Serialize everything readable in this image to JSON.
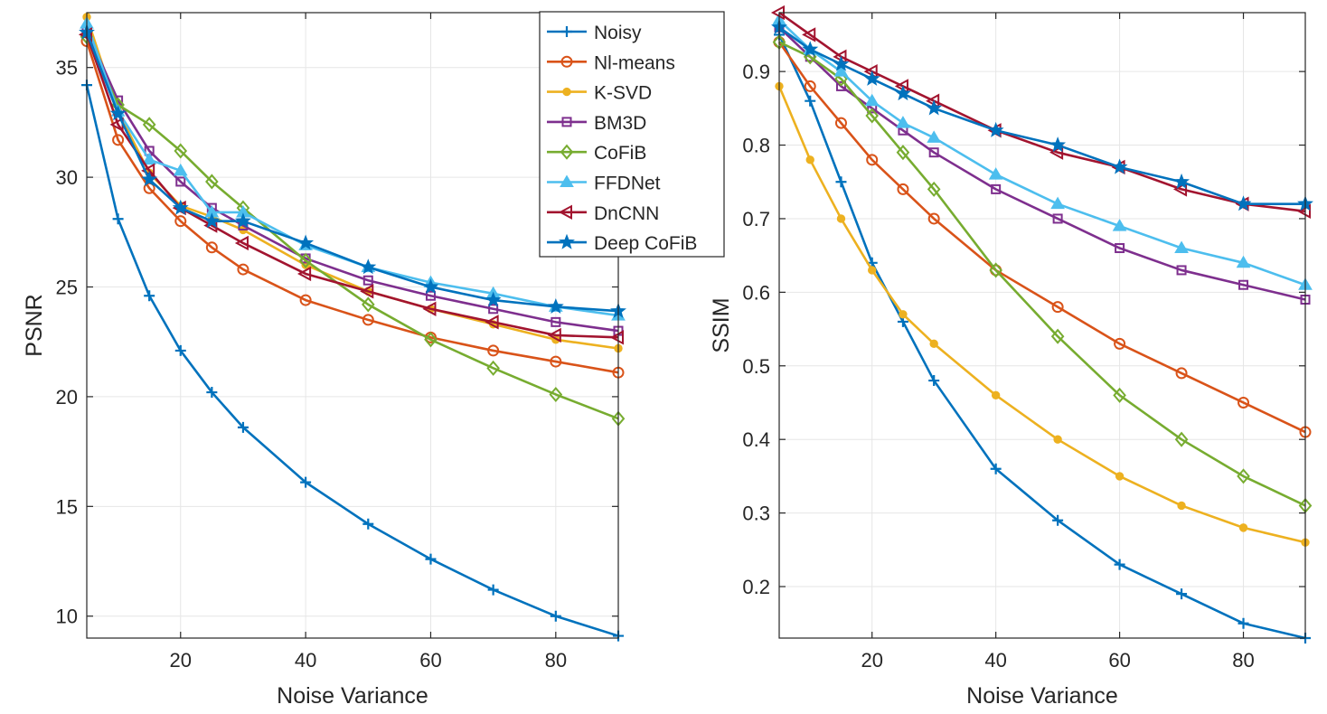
{
  "chart_data": [
    {
      "type": "line",
      "title": "",
      "xlabel": "Noise Variance",
      "ylabel": "PSNR",
      "xlim": [
        5,
        90
      ],
      "ylim": [
        9,
        37.5
      ],
      "xticks": [
        20,
        40,
        60,
        80
      ],
      "xtick_labels": [
        "20",
        "40",
        "60",
        "80"
      ],
      "yticks": [
        10,
        15,
        20,
        25,
        30,
        35
      ],
      "ytick_labels": [
        "10",
        "15",
        "20",
        "25",
        "30",
        "35"
      ],
      "grid": true,
      "x": [
        5,
        10,
        15,
        20,
        25,
        30,
        40,
        50,
        60,
        70,
        80,
        90
      ],
      "series": [
        {
          "name": "Noisy",
          "color": "#0072BD",
          "marker": "plus",
          "values": [
            34.2,
            28.1,
            24.6,
            22.1,
            20.2,
            18.6,
            16.1,
            14.2,
            12.6,
            11.2,
            10.0,
            9.1
          ]
        },
        {
          "name": "Nl-means",
          "color": "#D95319",
          "marker": "circle",
          "values": [
            36.2,
            31.7,
            29.5,
            28.0,
            26.8,
            25.8,
            24.4,
            23.5,
            22.7,
            22.1,
            21.6,
            21.1
          ]
        },
        {
          "name": "K-SVD",
          "color": "#EDB120",
          "marker": "dot",
          "values": [
            37.3,
            33.0,
            30.2,
            28.7,
            28.2,
            27.6,
            26.0,
            24.8,
            24.0,
            23.3,
            22.6,
            22.2
          ]
        },
        {
          "name": "BM3D",
          "color": "#7E2F8E",
          "marker": "square",
          "values": [
            36.7,
            33.5,
            31.2,
            29.8,
            28.6,
            27.8,
            26.3,
            25.3,
            24.6,
            24.0,
            23.4,
            23.0
          ]
        },
        {
          "name": "CoFiB",
          "color": "#77AC30",
          "marker": "diamond",
          "values": [
            36.4,
            33.3,
            32.4,
            31.2,
            29.8,
            28.6,
            26.2,
            24.2,
            22.6,
            21.3,
            20.1,
            19.0
          ]
        },
        {
          "name": "FFDNet",
          "color": "#4DBEEE",
          "marker": "triangle-up",
          "values": [
            37.0,
            33.0,
            30.8,
            30.3,
            28.4,
            28.4,
            26.9,
            25.9,
            25.2,
            24.7,
            24.1,
            23.7
          ]
        },
        {
          "name": "DnCNN",
          "color": "#A2142F",
          "marker": "triangle-left",
          "values": [
            36.5,
            32.4,
            30.3,
            28.6,
            27.8,
            27.0,
            25.6,
            24.8,
            24.0,
            23.4,
            22.8,
            22.7
          ]
        },
        {
          "name": "Deep CoFiB",
          "color": "#0072BD",
          "marker": "pentagram",
          "values": [
            36.6,
            32.9,
            29.9,
            28.6,
            28.0,
            28.0,
            27.0,
            25.9,
            25.0,
            24.4,
            24.1,
            23.9
          ]
        }
      ],
      "legend": {
        "position": "top-right"
      }
    },
    {
      "type": "line",
      "title": "",
      "xlabel": "Noise Variance",
      "ylabel": "SSIM",
      "xlim": [
        5,
        90
      ],
      "ylim": [
        0.13,
        0.98
      ],
      "xticks": [
        20,
        40,
        60,
        80
      ],
      "xtick_labels": [
        "20",
        "40",
        "60",
        "80"
      ],
      "yticks": [
        0.2,
        0.3,
        0.4,
        0.5,
        0.6,
        0.7,
        0.8,
        0.9
      ],
      "ytick_labels": [
        "0.2",
        "0.3",
        "0.4",
        "0.5",
        "0.6",
        "0.7",
        "0.8",
        "0.9"
      ],
      "grid": true,
      "x": [
        5,
        10,
        15,
        20,
        25,
        30,
        40,
        50,
        60,
        70,
        80,
        90
      ],
      "series": [
        {
          "name": "Noisy",
          "color": "#0072BD",
          "marker": "plus",
          "values": [
            0.95,
            0.86,
            0.75,
            0.64,
            0.56,
            0.48,
            0.36,
            0.29,
            0.23,
            0.19,
            0.15,
            0.13
          ]
        },
        {
          "name": "Nl-means",
          "color": "#D95319",
          "marker": "circle",
          "values": [
            0.94,
            0.88,
            0.83,
            0.78,
            0.74,
            0.7,
            0.63,
            0.58,
            0.53,
            0.49,
            0.45,
            0.41
          ]
        },
        {
          "name": "K-SVD",
          "color": "#EDB120",
          "marker": "dot",
          "values": [
            0.88,
            0.78,
            0.7,
            0.63,
            0.57,
            0.53,
            0.46,
            0.4,
            0.35,
            0.31,
            0.28,
            0.26
          ]
        },
        {
          "name": "BM3D",
          "color": "#7E2F8E",
          "marker": "square",
          "values": [
            0.96,
            0.92,
            0.88,
            0.85,
            0.82,
            0.79,
            0.74,
            0.7,
            0.66,
            0.63,
            0.61,
            0.59
          ]
        },
        {
          "name": "CoFiB",
          "color": "#77AC30",
          "marker": "diamond",
          "values": [
            0.94,
            0.92,
            0.89,
            0.84,
            0.79,
            0.74,
            0.63,
            0.54,
            0.46,
            0.4,
            0.35,
            0.31
          ]
        },
        {
          "name": "FFDNet",
          "color": "#4DBEEE",
          "marker": "triangle-up",
          "values": [
            0.97,
            0.93,
            0.9,
            0.86,
            0.83,
            0.81,
            0.76,
            0.72,
            0.69,
            0.66,
            0.64,
            0.61
          ]
        },
        {
          "name": "DnCNN",
          "color": "#A2142F",
          "marker": "triangle-left",
          "values": [
            0.98,
            0.95,
            0.92,
            0.9,
            0.88,
            0.86,
            0.82,
            0.79,
            0.77,
            0.74,
            0.72,
            0.71
          ]
        },
        {
          "name": "Deep CoFiB",
          "color": "#0072BD",
          "marker": "pentagram",
          "values": [
            0.96,
            0.93,
            0.91,
            0.89,
            0.87,
            0.85,
            0.82,
            0.8,
            0.77,
            0.75,
            0.72,
            0.72
          ]
        }
      ]
    }
  ]
}
